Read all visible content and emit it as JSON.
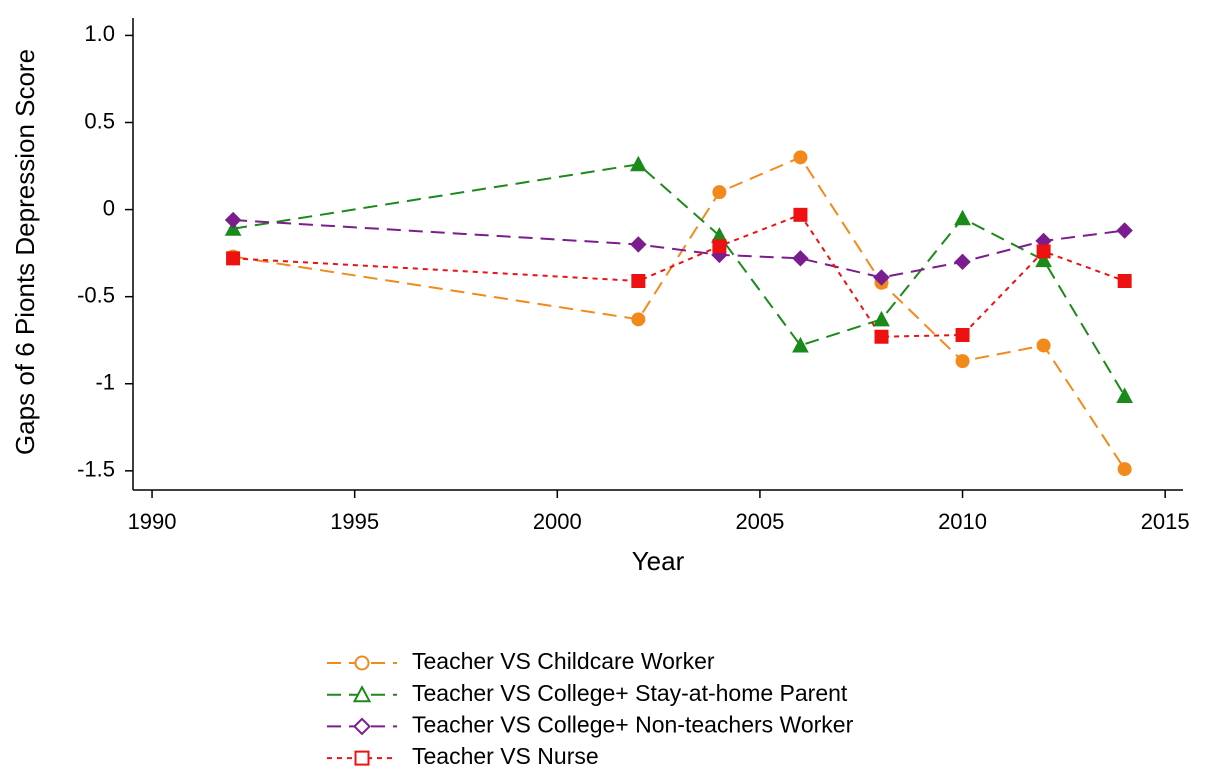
{
  "chart_data": {
    "type": "line",
    "xlabel": "Year",
    "ylabel": "Gaps of 6 Pionts Depression Score",
    "x": [
      1992,
      2002,
      2004,
      2006,
      2008,
      2010,
      2012,
      2014
    ],
    "series": [
      {
        "name": "Teacher VS Childcare Worker",
        "color": "#f28a1b",
        "marker": "circle",
        "dash": "long",
        "values": [
          -0.27,
          -0.63,
          0.1,
          0.3,
          -0.42,
          -0.87,
          -0.78,
          -1.49
        ]
      },
      {
        "name": "Teacher VS College+ Stay-at-home Parent",
        "color": "#1a8a1a",
        "marker": "triangle",
        "dash": "long",
        "values": [
          -0.11,
          0.26,
          -0.15,
          -0.78,
          -0.63,
          -0.05,
          -0.29,
          -1.07
        ]
      },
      {
        "name": "Teacher VS College+ Non-teachers Worker",
        "color": "#7b1d8e",
        "marker": "diamond",
        "dash": "long",
        "values": [
          -0.06,
          -0.2,
          -0.26,
          -0.28,
          -0.39,
          -0.3,
          -0.18,
          -0.12
        ]
      },
      {
        "name": "Teacher VS Nurse",
        "color": "#ee1111",
        "marker": "square",
        "dash": "short",
        "values": [
          -0.28,
          -0.41,
          -0.21,
          -0.03,
          -0.73,
          -0.72,
          -0.24,
          -0.41
        ]
      }
    ],
    "xlim": [
      1989.53,
      2015.44
    ],
    "xticks": [
      1990,
      1995,
      2000,
      2005,
      2010,
      2015
    ],
    "ylim": [
      -1.61,
      1.1
    ],
    "yticks": [
      {
        "value": 1,
        "label": "1.0"
      },
      {
        "value": 0.5,
        "label": "0.5"
      },
      0,
      -0.5,
      -1,
      -1.5
    ],
    "grid": false,
    "legend": "bottom"
  }
}
